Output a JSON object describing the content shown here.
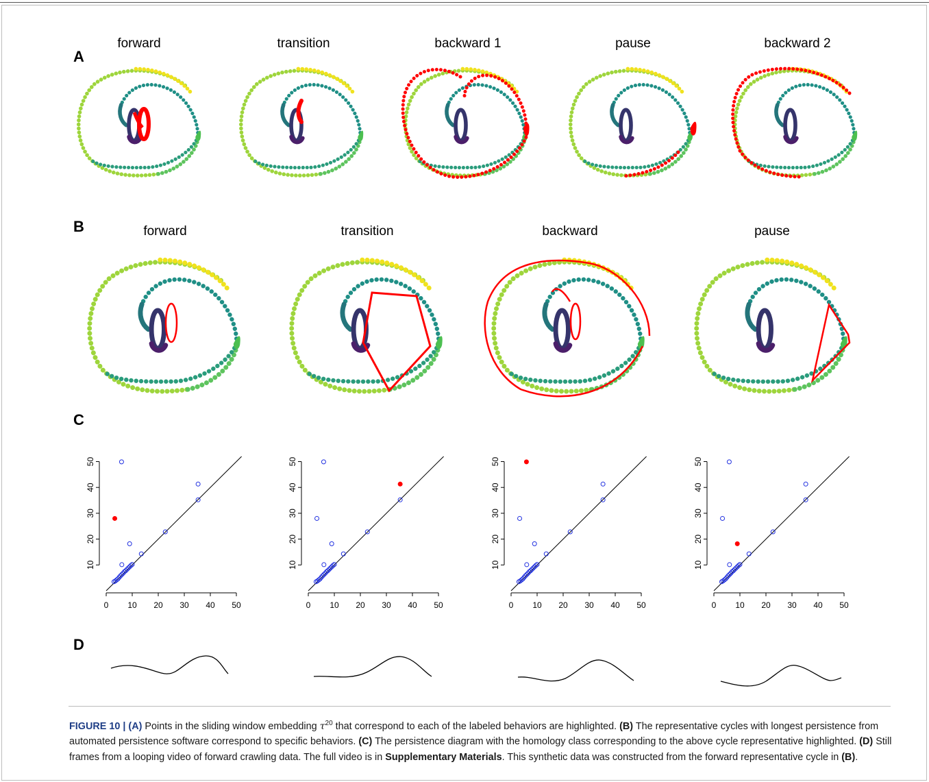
{
  "panels": {
    "A": {
      "letter": "A",
      "titles": [
        "forward",
        "transition",
        "backward 1",
        "pause",
        "backward 2"
      ]
    },
    "B": {
      "letter": "B",
      "titles": [
        "forward",
        "transition",
        "backward",
        "pause"
      ]
    },
    "C": {
      "letter": "C"
    },
    "D": {
      "letter": "D"
    }
  },
  "colors": {
    "highlight": "#ff0000",
    "inner_loop": "#35346b",
    "inner_dark": "#4b1f6a",
    "stem": "#24757b",
    "inner_ring": "#1f8f86",
    "outer_left": "#9ed53c",
    "outer_top": "#78c85a",
    "tail_yellow": "#f0e21e",
    "open_point": "#1f2fe0"
  },
  "chart_data": [
    {
      "type": "scatter",
      "title": "",
      "xlabel": "",
      "ylabel": "",
      "xlim": [
        0,
        52
      ],
      "ylim": [
        0,
        52
      ],
      "xticks": [
        "0",
        "10",
        "20",
        "30",
        "40",
        "50"
      ],
      "yticks": [
        "10",
        "20",
        "30",
        "40",
        "50"
      ],
      "diagonal": true,
      "series": [
        {
          "values": [
            [
              3,
              3.5
            ],
            [
              3.5,
              3.8
            ],
            [
              4,
              4.2
            ],
            [
              4.5,
              4.6
            ],
            [
              5,
              5.2
            ],
            [
              5.5,
              5.8
            ],
            [
              6,
              6.3
            ],
            [
              6.5,
              6.8
            ],
            [
              7,
              7.4
            ],
            [
              7.5,
              7.8
            ],
            [
              8,
              8.3
            ],
            [
              8.5,
              8.8
            ],
            [
              9,
              9.3
            ],
            [
              9.5,
              9.8
            ],
            [
              10,
              10.2
            ],
            [
              6,
              10.1
            ],
            [
              9,
              18.2
            ],
            [
              13.5,
              14.3
            ],
            [
              22.7,
              22.8
            ],
            [
              35.3,
              35.2
            ],
            [
              35.3,
              41.3
            ],
            [
              5.9,
              49.9
            ]
          ]
        }
      ],
      "highlight": [
        3.3,
        28
      ]
    },
    {
      "type": "scatter",
      "title": "",
      "xlabel": "",
      "ylabel": "",
      "xlim": [
        0,
        52
      ],
      "ylim": [
        0,
        52
      ],
      "xticks": [
        "0",
        "10",
        "20",
        "30",
        "40",
        "50"
      ],
      "yticks": [
        "10",
        "20",
        "30",
        "40",
        "50"
      ],
      "diagonal": true,
      "series": [
        {
          "values": [
            [
              3,
              3.5
            ],
            [
              3.5,
              3.8
            ],
            [
              4,
              4.2
            ],
            [
              4.5,
              4.6
            ],
            [
              5,
              5.2
            ],
            [
              5.5,
              5.8
            ],
            [
              6,
              6.3
            ],
            [
              6.5,
              6.8
            ],
            [
              7,
              7.4
            ],
            [
              7.5,
              7.8
            ],
            [
              8,
              8.3
            ],
            [
              8.5,
              8.8
            ],
            [
              9,
              9.3
            ],
            [
              9.5,
              9.8
            ],
            [
              10,
              10.2
            ],
            [
              6,
              10.1
            ],
            [
              9,
              18.2
            ],
            [
              13.5,
              14.3
            ],
            [
              22.7,
              22.8
            ],
            [
              35.3,
              35.2
            ],
            [
              3.3,
              28
            ],
            [
              5.9,
              49.9
            ]
          ]
        }
      ],
      "highlight": [
        35.3,
        41.3
      ]
    },
    {
      "type": "scatter",
      "title": "",
      "xlabel": "",
      "ylabel": "",
      "xlim": [
        0,
        52
      ],
      "ylim": [
        0,
        52
      ],
      "xticks": [
        "0",
        "10",
        "20",
        "30",
        "40",
        "50"
      ],
      "yticks": [
        "10",
        "20",
        "30",
        "40",
        "50"
      ],
      "diagonal": true,
      "series": [
        {
          "values": [
            [
              3,
              3.5
            ],
            [
              3.5,
              3.8
            ],
            [
              4,
              4.2
            ],
            [
              4.5,
              4.6
            ],
            [
              5,
              5.2
            ],
            [
              5.5,
              5.8
            ],
            [
              6,
              6.3
            ],
            [
              6.5,
              6.8
            ],
            [
              7,
              7.4
            ],
            [
              7.5,
              7.8
            ],
            [
              8,
              8.3
            ],
            [
              8.5,
              8.8
            ],
            [
              9,
              9.3
            ],
            [
              9.5,
              9.8
            ],
            [
              10,
              10.2
            ],
            [
              6,
              10.1
            ],
            [
              9,
              18.2
            ],
            [
              13.5,
              14.3
            ],
            [
              22.7,
              22.8
            ],
            [
              35.3,
              35.2
            ],
            [
              35.3,
              41.3
            ],
            [
              3.3,
              28
            ]
          ]
        }
      ],
      "highlight": [
        5.9,
        49.9
      ]
    },
    {
      "type": "scatter",
      "title": "",
      "xlabel": "",
      "ylabel": "",
      "xlim": [
        0,
        52
      ],
      "ylim": [
        0,
        52
      ],
      "xticks": [
        "0",
        "10",
        "20",
        "30",
        "40",
        "50"
      ],
      "yticks": [
        "10",
        "20",
        "30",
        "40",
        "50"
      ],
      "diagonal": true,
      "series": [
        {
          "values": [
            [
              3,
              3.5
            ],
            [
              3.5,
              3.8
            ],
            [
              4,
              4.2
            ],
            [
              4.5,
              4.6
            ],
            [
              5,
              5.2
            ],
            [
              5.5,
              5.8
            ],
            [
              6,
              6.3
            ],
            [
              6.5,
              6.8
            ],
            [
              7,
              7.4
            ],
            [
              7.5,
              7.8
            ],
            [
              8,
              8.3
            ],
            [
              8.5,
              8.8
            ],
            [
              9,
              9.3
            ],
            [
              9.5,
              9.8
            ],
            [
              10,
              10.2
            ],
            [
              6,
              10.1
            ],
            [
              13.5,
              14.3
            ],
            [
              22.7,
              22.8
            ],
            [
              35.3,
              35.2
            ],
            [
              35.3,
              41.3
            ],
            [
              3.3,
              28
            ],
            [
              5.9,
              49.9
            ]
          ]
        }
      ],
      "highlight": [
        9,
        18.2
      ]
    }
  ],
  "caption": {
    "prefix": "FIGURE 10 |",
    "a_label": "(A)",
    "a_text1": " Points in the sliding window embedding ",
    "tau": "τ",
    "tau_sup": "20",
    "a_text2": " that correspond to each of the labeled behaviors are highlighted. ",
    "b_label": "(B)",
    "b_text": " The representative cycles with longest persistence from automated persistence software correspond to specific behaviors. ",
    "c_label": "(C)",
    "c_text": " The persistence diagram with the homology class corresponding to the above cycle representative highlighted. ",
    "d_label": "(D)",
    "d_text1": " Still frames from a looping video of forward crawling data. The full video is in ",
    "supp": "Supplementary Materials",
    "d_text2": ". This synthetic data was constructed from the forward representative cycle in ",
    "b_ref": "(B)",
    "end": "."
  }
}
